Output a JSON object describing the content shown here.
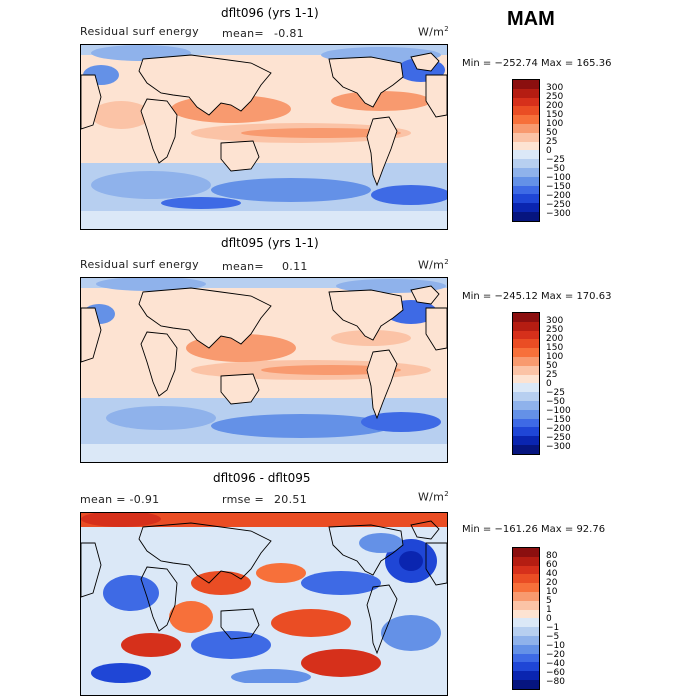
{
  "season": "MAM",
  "units_label": "W/m",
  "units_exp": "2",
  "panels": [
    {
      "title": "dflt096 (yrs 1-1)",
      "left_label": "Residual surf energy",
      "stat_label": "mean=",
      "stat_value": "-0.81",
      "minmax": "Min = −252.74  Max = 165.36"
    },
    {
      "title": "dflt095 (yrs 1-1)",
      "left_label": "Residual surf energy",
      "stat_label": "mean=",
      "stat_value": "0.11",
      "minmax": "Min = −245.12  Max = 170.63"
    },
    {
      "title": "dflt096 - dflt095",
      "left_label": "mean =   -0.91",
      "stat_label": "rmse =",
      "stat_value": "20.51",
      "minmax": "Min = −161.26  Max =  92.76"
    }
  ],
  "colorbar_abs": {
    "labels": [
      "300",
      "250",
      "200",
      "150",
      "100",
      "50",
      "25",
      "0",
      "−25",
      "−50",
      "−100",
      "−150",
      "−200",
      "−250",
      "−300"
    ],
    "colors": [
      "#8b0f0f",
      "#b51d12",
      "#d6301b",
      "#ea4d24",
      "#f7703a",
      "#f89a6f",
      "#fbc3a6",
      "#fde3d2",
      "#dbe8f7",
      "#b7cff0",
      "#8fb2eb",
      "#6491e7",
      "#3e6ae5",
      "#1f46d6",
      "#0a25b0",
      "#06157f"
    ]
  },
  "colorbar_diff": {
    "labels": [
      "80",
      "60",
      "40",
      "20",
      "10",
      "5",
      "1",
      "0",
      "−1",
      "−5",
      "−10",
      "−20",
      "−40",
      "−60",
      "−80"
    ],
    "colors": [
      "#8b0f0f",
      "#b51d12",
      "#d6301b",
      "#ea4d24",
      "#f7703a",
      "#f89a6f",
      "#fbc3a6",
      "#fde3d2",
      "#dbe8f7",
      "#b7cff0",
      "#8fb2eb",
      "#6491e7",
      "#3e6ae5",
      "#1f46d6",
      "#0a25b0",
      "#06157f"
    ]
  }
}
